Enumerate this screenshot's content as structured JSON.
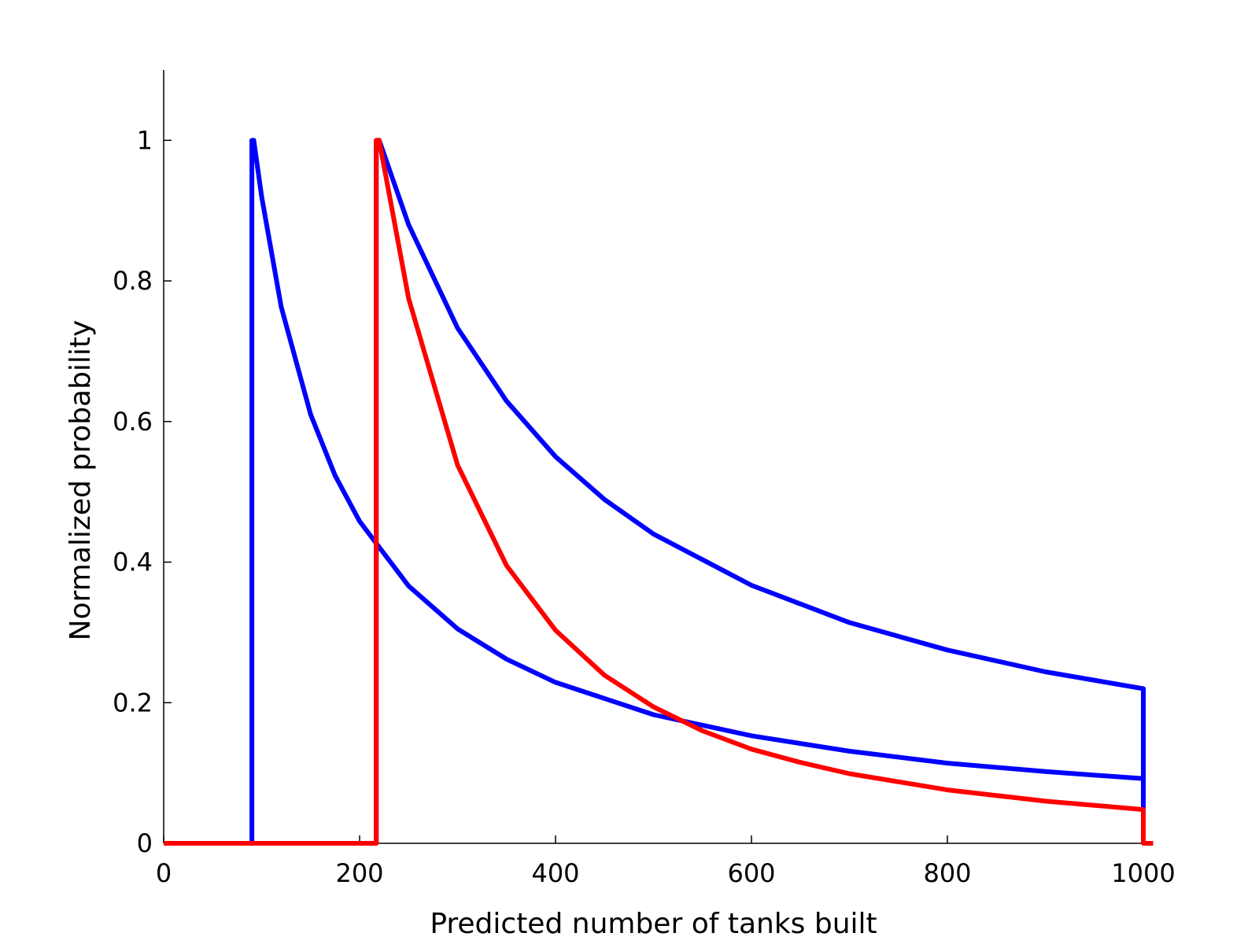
{
  "chart_data": {
    "type": "line",
    "title": "",
    "xlabel": "Predicted number of tanks built",
    "ylabel": "Normalized probability",
    "xlim": [
      0,
      1000
    ],
    "ylim": [
      0,
      1.1
    ],
    "x_ticks": [
      0,
      200,
      400,
      600,
      800,
      1000
    ],
    "x_tick_labels": [
      "0",
      "200",
      "400",
      "600",
      "800",
      "1000"
    ],
    "y_ticks": [
      0,
      0.2,
      0.4,
      0.6,
      0.8,
      1
    ],
    "y_tick_labels": [
      "0",
      "0.2",
      "0.4",
      "0.6",
      "0.8",
      "1"
    ],
    "grid": false,
    "legend": "none",
    "series": [
      {
        "color": "#0000ff",
        "x": [
          0,
          90,
          90,
          92,
          100,
          120,
          150,
          175,
          200,
          250,
          300,
          350,
          400,
          500,
          600,
          700,
          800,
          900,
          1000,
          1000
        ],
        "y": [
          0,
          0,
          1.0,
          1.0,
          0.92,
          0.763,
          0.61,
          0.523,
          0.458,
          0.366,
          0.305,
          0.262,
          0.229,
          0.183,
          0.153,
          0.131,
          0.114,
          0.102,
          0.092,
          0
        ]
      },
      {
        "color": "#0000ff",
        "x": [
          0,
          217,
          217,
          220,
          250,
          300,
          350,
          400,
          450,
          500,
          600,
          700,
          800,
          900,
          1000,
          1000
        ],
        "y": [
          0,
          0,
          1.0,
          1.0,
          0.88,
          0.733,
          0.629,
          0.55,
          0.489,
          0.44,
          0.367,
          0.314,
          0.275,
          0.244,
          0.22,
          0
        ]
      },
      {
        "color": "#ff0000",
        "x": [
          0,
          217,
          217,
          220,
          250,
          300,
          350,
          400,
          450,
          500,
          550,
          600,
          650,
          700,
          800,
          900,
          1000,
          1000,
          1010
        ],
        "y": [
          0,
          0,
          1.0,
          1.0,
          0.775,
          0.538,
          0.395,
          0.303,
          0.239,
          0.194,
          0.16,
          0.134,
          0.115,
          0.099,
          0.076,
          0.06,
          0.048,
          0,
          0
        ]
      }
    ]
  }
}
